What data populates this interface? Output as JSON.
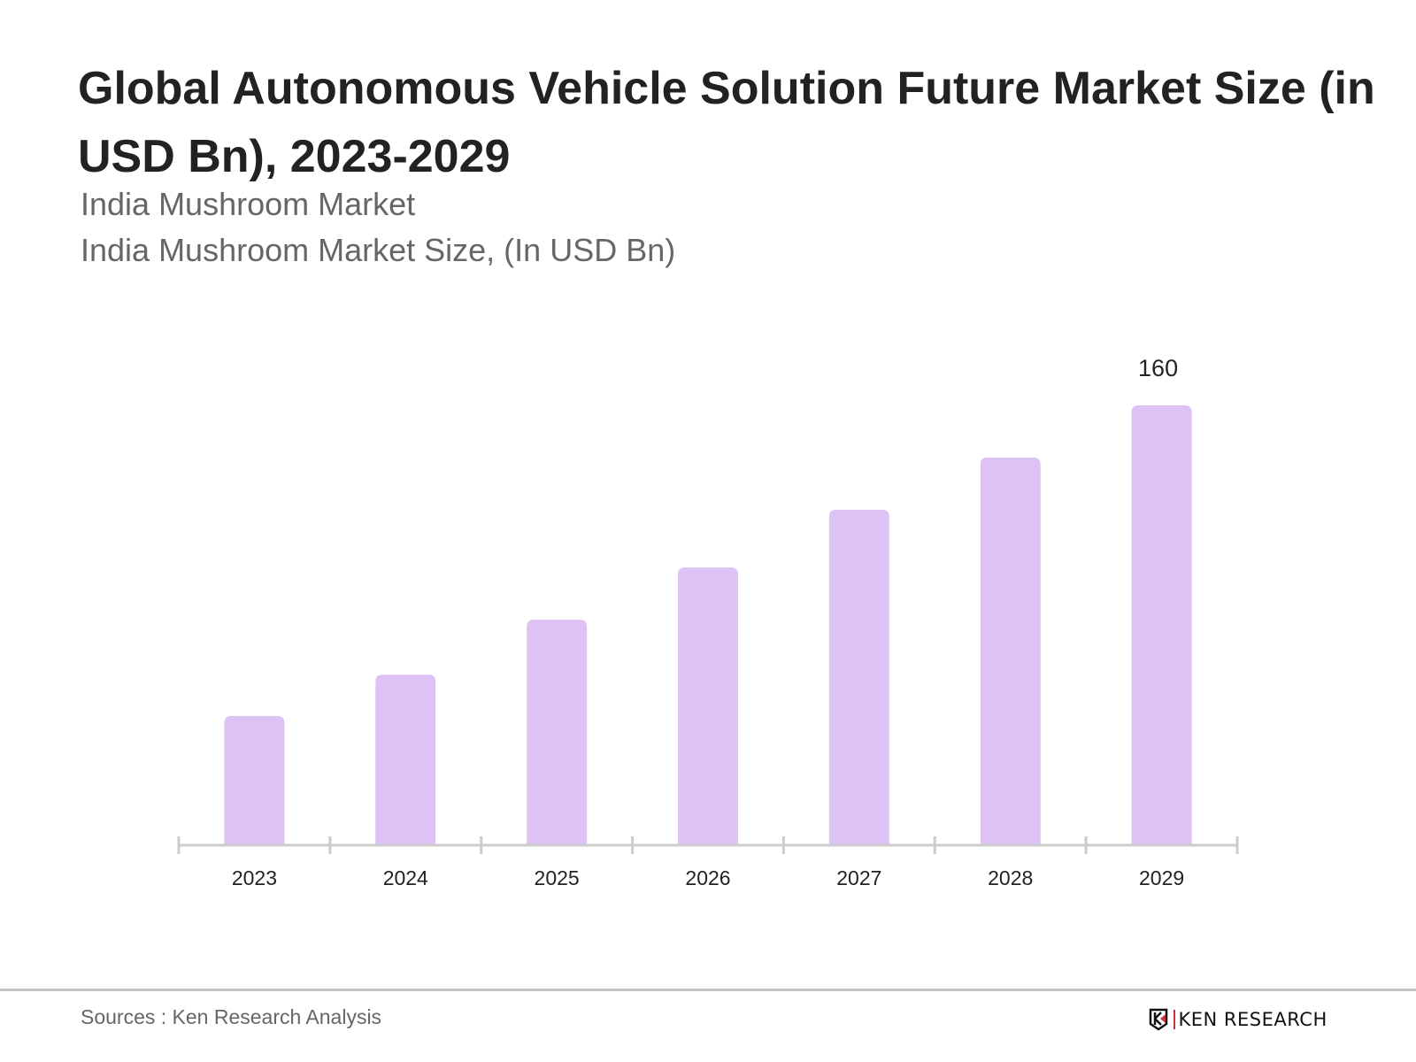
{
  "title": "Global Autonomous Vehicle Solution Future Market Size (in USD Bn), 2023-2029",
  "subtitle1": "India Mushroom Market",
  "subtitle2": "India Mushroom Market Size, (In USD Bn)",
  "footer": {
    "sources": "Sources : Ken Research Analysis",
    "logo_text": "KEN RESEARCH"
  },
  "chart_data": {
    "type": "bar",
    "categories": [
      "2023",
      "2024",
      "2025",
      "2026",
      "2027",
      "2028",
      "2029"
    ],
    "values": [
      47,
      62,
      82,
      101,
      122,
      141,
      160
    ],
    "data_labels": {
      "2029": "160"
    },
    "title": "Global Autonomous Vehicle Solution Future Market Size (in USD Bn), 2023-2029",
    "xlabel": "",
    "ylabel": "",
    "ylim": [
      0,
      160
    ],
    "grid": false,
    "bar_color": "#dcc2f5",
    "axis_color": "#cccccc"
  }
}
